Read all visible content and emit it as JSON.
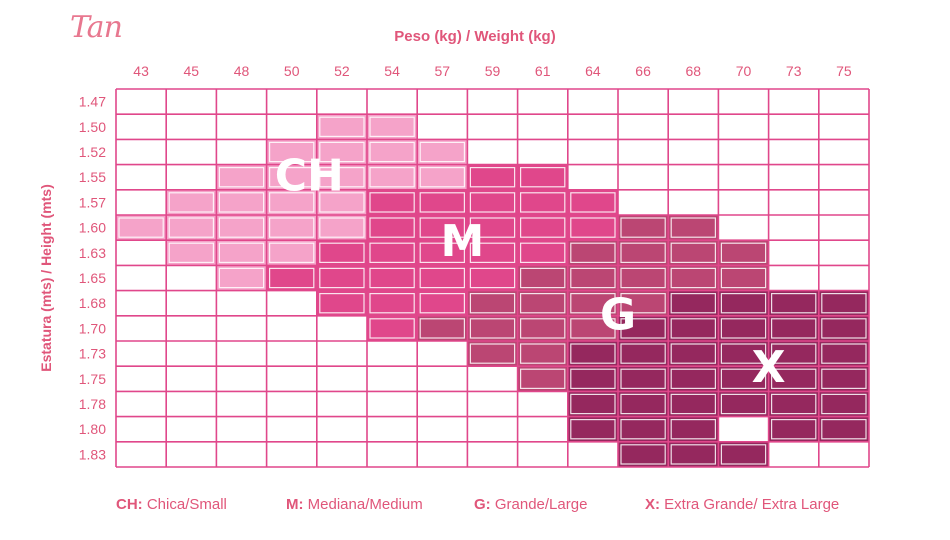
{
  "logo": "Tan",
  "chart_data": {
    "type": "heatmap",
    "title": "Peso (kg) / Weight (kg)",
    "xlabel": "Peso (kg) / Weight (kg)",
    "ylabel": "Estatura (mts) / Height (mts)",
    "x_categories": [
      "43",
      "45",
      "48",
      "50",
      "52",
      "54",
      "57",
      "59",
      "61",
      "64",
      "66",
      "68",
      "70",
      "73",
      "75"
    ],
    "y_categories": [
      "1.47",
      "1.50",
      "1.52",
      "1.55",
      "1.57",
      "1.60",
      "1.63",
      "1.65",
      "1.68",
      "1.70",
      "1.73",
      "1.75",
      "1.78",
      "1.80",
      "1.83"
    ],
    "sizes": {
      "CH": {
        "code": "CH",
        "label": "Chica/Small",
        "color": "#f5a3c9"
      },
      "M": {
        "code": "M",
        "label": "Mediana/Medium",
        "color": "#e0478b"
      },
      "G": {
        "code": "G",
        "label": "Grande/Large",
        "color": "#bb4673"
      },
      "X": {
        "code": "X",
        "label": "Extra Grande/ Extra Large",
        "color": "#95285e"
      }
    },
    "grid": [
      [
        "",
        "",
        "",
        "",
        "",
        "",
        "",
        "",
        "",
        "",
        "",
        "",
        "",
        "",
        ""
      ],
      [
        "",
        "",
        "",
        "",
        "CH",
        "CH",
        "",
        "",
        "",
        "",
        "",
        "",
        "",
        "",
        ""
      ],
      [
        "",
        "",
        "",
        "CH",
        "CH",
        "CH",
        "CH",
        "",
        "",
        "",
        "",
        "",
        "",
        "",
        ""
      ],
      [
        "",
        "",
        "CH",
        "CH",
        "CH",
        "CH",
        "CH",
        "M",
        "M",
        "",
        "",
        "",
        "",
        "",
        ""
      ],
      [
        "",
        "CH",
        "CH",
        "CH",
        "CH",
        "M",
        "M",
        "M",
        "M",
        "M",
        "",
        "",
        "",
        "",
        ""
      ],
      [
        "CH",
        "CH",
        "CH",
        "CH",
        "CH",
        "M",
        "M",
        "M",
        "M",
        "M",
        "G",
        "G",
        "",
        "",
        ""
      ],
      [
        "",
        "CH",
        "CH",
        "CH",
        "M",
        "M",
        "M",
        "M",
        "M",
        "G",
        "G",
        "G",
        "G",
        "",
        ""
      ],
      [
        "",
        "",
        "CH",
        "M",
        "M",
        "M",
        "M",
        "M",
        "G",
        "G",
        "G",
        "G",
        "G",
        "",
        ""
      ],
      [
        "",
        "",
        "",
        "",
        "M",
        "M",
        "M",
        "G",
        "G",
        "G",
        "G",
        "X",
        "X",
        "X",
        "X"
      ],
      [
        "",
        "",
        "",
        "",
        "",
        "M",
        "G",
        "G",
        "G",
        "G",
        "X",
        "X",
        "X",
        "X",
        "X"
      ],
      [
        "",
        "",
        "",
        "",
        "",
        "",
        "",
        "G",
        "G",
        "X",
        "X",
        "X",
        "X",
        "X",
        "X"
      ],
      [
        "",
        "",
        "",
        "",
        "",
        "",
        "",
        "",
        "G",
        "X",
        "X",
        "X",
        "X",
        "X",
        "X"
      ],
      [
        "",
        "",
        "",
        "",
        "",
        "",
        "",
        "",
        "",
        "X",
        "X",
        "X",
        "X",
        "X",
        "X"
      ],
      [
        "",
        "",
        "",
        "",
        "",
        "",
        "",
        "",
        "",
        "X",
        "X",
        "X",
        "",
        "X",
        "X"
      ],
      [
        "",
        "",
        "",
        "",
        "",
        "",
        "",
        "",
        "",
        "",
        "X",
        "X",
        "X",
        "",
        ""
      ]
    ],
    "annotations": [
      {
        "text": "CH",
        "col": 3.85,
        "row": 3.4
      },
      {
        "text": "M",
        "col": 6.9,
        "row": 6.0
      },
      {
        "text": "G",
        "col": 10.0,
        "row": 8.9
      },
      {
        "text": "X",
        "col": 13.0,
        "row": 11.0
      }
    ]
  },
  "legend": [
    {
      "code": "CH:",
      "label": "Chica/Small"
    },
    {
      "code": "M:",
      "label": "Mediana/Medium"
    },
    {
      "code": "G:",
      "label": "Grande/Large"
    },
    {
      "code": "X:",
      "label": "Extra Grande/ Extra Large"
    }
  ]
}
